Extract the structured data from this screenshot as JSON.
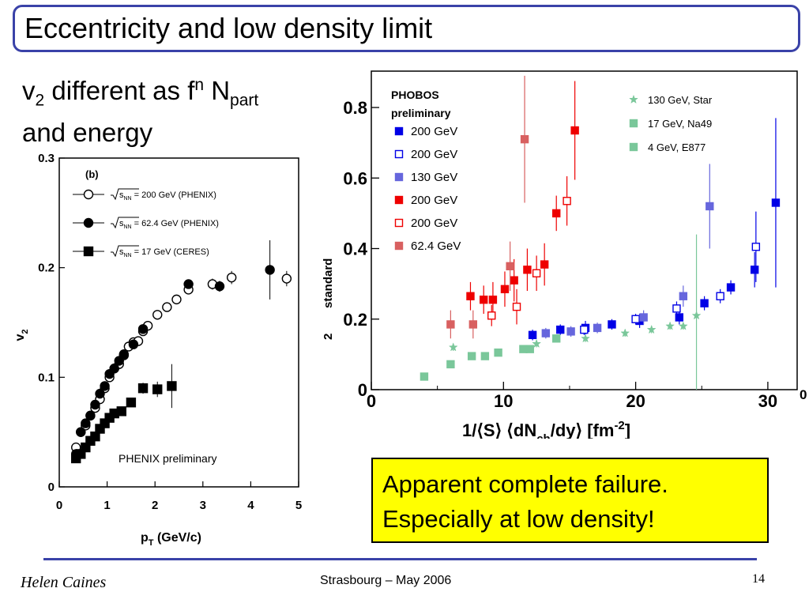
{
  "slide": {
    "title": "Eccentricity and low density limit",
    "subtitle": {
      "v": "v",
      "two": "2",
      "mid": " different as f",
      "n": "n",
      "N": " N",
      "part": "part",
      "line2": "and energy"
    },
    "callout": {
      "line1": "Apparent complete failure.",
      "line2": "Especially at low density!"
    },
    "footer": {
      "author": "Helen Caines",
      "center": "Strasbourg  –  May 2006",
      "page": "14"
    }
  },
  "colors": {
    "accent": "#3a42a8",
    "callout_bg": "#ffff00",
    "blue": "#0000e6",
    "violet": "#6666dd",
    "red": "#ee0000",
    "rose": "#d86060",
    "teal": "#7ac79a"
  },
  "chart_data": [
    {
      "type": "scatter",
      "panel_label": "(b)",
      "xlabel": "p",
      "xlabel_sub": "T",
      "xlabel_unit": " (GeV/c)",
      "ylabel": "v",
      "ylabel_sub": "2",
      "xlim": [
        0,
        5
      ],
      "ylim": [
        0,
        0.3
      ],
      "xticks": [
        "0",
        "1",
        "2",
        "3",
        "4",
        "5"
      ],
      "yticks": [
        "0",
        "0.1",
        "0.2",
        "0.3"
      ],
      "annotation": "PHENIX preliminary",
      "legend": [
        {
          "sqrt": "s",
          "sub": "NN",
          "text": " = 200 GeV (PHENIX)",
          "marker": "open-circle"
        },
        {
          "sqrt": "s",
          "sub": "NN",
          "text": " = 62.4 GeV (PHENIX)",
          "marker": "filled-circle"
        },
        {
          "sqrt": "s",
          "sub": "NN",
          "text": " = 17 GeV (CERES)",
          "marker": "filled-square"
        }
      ],
      "series": [
        {
          "marker": "open-circle",
          "x": [
            0.35,
            0.45,
            0.55,
            0.65,
            0.75,
            0.85,
            0.95,
            1.05,
            1.15,
            1.25,
            1.35,
            1.45,
            1.55,
            1.65,
            1.75,
            1.85,
            2.05,
            2.25,
            2.45,
            2.7,
            3.2,
            3.6,
            4.75
          ],
          "y": [
            0.036,
            0.05,
            0.056,
            0.065,
            0.072,
            0.08,
            0.09,
            0.1,
            0.108,
            0.112,
            0.12,
            0.128,
            0.132,
            0.133,
            0.142,
            0.147,
            0.157,
            0.164,
            0.171,
            0.18,
            0.185,
            0.191,
            0.19
          ],
          "err": [
            0,
            0,
            0,
            0,
            0,
            0,
            0,
            0,
            0,
            0,
            0,
            0,
            0,
            0,
            0,
            0,
            0,
            0,
            0,
            0,
            0.005,
            0.006,
            0.007
          ]
        },
        {
          "marker": "filled-circle",
          "x": [
            0.35,
            0.45,
            0.55,
            0.65,
            0.75,
            0.85,
            0.95,
            1.05,
            1.15,
            1.25,
            1.35,
            1.55,
            1.75,
            2.7,
            3.35,
            4.4
          ],
          "y": [
            0.03,
            0.05,
            0.058,
            0.065,
            0.075,
            0.085,
            0.092,
            0.103,
            0.108,
            0.115,
            0.121,
            0.13,
            0.144,
            0.185,
            0.183,
            0.198
          ],
          "err": [
            0,
            0,
            0,
            0,
            0,
            0,
            0,
            0,
            0,
            0,
            0,
            0,
            0,
            0.004,
            0.005,
            0.027
          ]
        },
        {
          "marker": "filled-square",
          "x": [
            0.35,
            0.45,
            0.55,
            0.65,
            0.75,
            0.85,
            0.95,
            1.05,
            1.15,
            1.3,
            1.5,
            1.75,
            2.05,
            2.35
          ],
          "y": [
            0.026,
            0.03,
            0.036,
            0.042,
            0.046,
            0.053,
            0.058,
            0.063,
            0.067,
            0.069,
            0.077,
            0.09,
            0.089,
            0.092
          ],
          "err": [
            0,
            0,
            0,
            0,
            0,
            0,
            0,
            0,
            0,
            0,
            0,
            0.005,
            0.007,
            0.02
          ]
        }
      ]
    },
    {
      "type": "scatter",
      "xlabel": "1/⟨S⟩ ⟨dN",
      "xlabel_sub": "ch",
      "xlabel_end": "/dy⟩ [fm",
      "xlabel_sup": "-2",
      "xlabel_close": "]",
      "ylabel_fragment": "standard",
      "ylabel_fragment2": "2",
      "edge_fragment": "0",
      "xlim": [
        0,
        32
      ],
      "ylim": [
        0,
        0.9
      ],
      "xticks": [
        "0",
        "10",
        "20",
        "30"
      ],
      "yticks": [
        "0",
        "0.2",
        "0.4",
        "0.6",
        "0.8"
      ],
      "legend_left_title": [
        "PHOBOS",
        "preliminary"
      ],
      "legend_left": [
        {
          "label": "200 GeV",
          "marker": "filled-square",
          "color": "#0000e6"
        },
        {
          "label": "200 GeV",
          "marker": "open-square",
          "color": "#0000e6"
        },
        {
          "label": "130 GeV",
          "marker": "filled-square",
          "color": "#6666dd"
        },
        {
          "label": "200 GeV",
          "marker": "filled-square",
          "color": "#ee0000"
        },
        {
          "label": "200 GeV",
          "marker": "open-square",
          "color": "#ee0000"
        },
        {
          "label": "62.4 GeV",
          "marker": "filled-square",
          "color": "#d86060"
        }
      ],
      "legend_right": [
        {
          "label": "130 GeV, Star",
          "marker": "star",
          "color": "#7ac79a"
        },
        {
          "label": "17 GeV, Na49",
          "marker": "filled-square",
          "color": "#7ac79a"
        },
        {
          "label": "4 GeV, E877",
          "marker": "filled-square",
          "color": "#7ac79a"
        }
      ],
      "series": [
        {
          "marker": "filled-square",
          "color": "#0000e6",
          "x": [
            12.2,
            14.3,
            16.2,
            18.2,
            20.3,
            23.3,
            25.2,
            27.2,
            29.0,
            30.6
          ],
          "y": [
            0.155,
            0.17,
            0.175,
            0.185,
            0.195,
            0.205,
            0.245,
            0.29,
            0.34,
            0.53
          ],
          "err": [
            0.015,
            0.015,
            0.02,
            0.015,
            0.02,
            0.02,
            0.02,
            0.02,
            0.05,
            0.24
          ]
        },
        {
          "marker": "open-square",
          "color": "#0000e6",
          "x": [
            16.1,
            20.0,
            23.1,
            26.4,
            29.1
          ],
          "y": [
            0.17,
            0.2,
            0.23,
            0.265,
            0.405
          ],
          "err": [
            0.015,
            0.015,
            0.02,
            0.02,
            0.1
          ]
        },
        {
          "marker": "filled-square",
          "color": "#6666dd",
          "x": [
            13.2,
            15.1,
            17.1,
            20.6,
            23.6,
            25.6
          ],
          "y": [
            0.16,
            0.165,
            0.175,
            0.205,
            0.265,
            0.52
          ],
          "err": [
            0.015,
            0.015,
            0.015,
            0.02,
            0.03,
            0.12
          ]
        },
        {
          "marker": "filled-square",
          "color": "#ee0000",
          "x": [
            7.5,
            8.5,
            9.2,
            10.1,
            10.8,
            11.8,
            13.1,
            14.0,
            15.4
          ],
          "y": [
            0.265,
            0.255,
            0.255,
            0.285,
            0.31,
            0.34,
            0.355,
            0.5,
            0.735
          ],
          "err": [
            0.04,
            0.04,
            0.05,
            0.05,
            0.06,
            0.06,
            0.06,
            0.05,
            0.14
          ]
        },
        {
          "marker": "open-square",
          "color": "#ee0000",
          "x": [
            9.1,
            11.0,
            12.5,
            14.8
          ],
          "y": [
            0.21,
            0.235,
            0.33,
            0.535
          ],
          "err": [
            0.03,
            0.05,
            0.05,
            0.07
          ]
        },
        {
          "marker": "filled-square",
          "color": "#d86060",
          "x": [
            6.0,
            7.7,
            10.5,
            11.6
          ],
          "y": [
            0.185,
            0.185,
            0.35,
            0.71
          ],
          "err": [
            0.04,
            0.04,
            0.07,
            0.18
          ]
        },
        {
          "marker": "star",
          "color": "#7ac79a",
          "x": [
            6.2,
            12.5,
            16.2,
            19.2,
            21.2,
            22.6,
            23.6,
            24.6
          ],
          "y": [
            0.12,
            0.13,
            0.145,
            0.16,
            0.17,
            0.18,
            0.18,
            0.21
          ],
          "err": [
            0.01,
            0.01,
            0.01,
            0.01,
            0.01,
            0.01,
            0.01,
            0.23
          ]
        },
        {
          "marker": "filled-square",
          "color": "#7ac79a",
          "x": [
            4.0,
            6.0,
            7.6,
            8.6,
            9.6,
            11.5,
            12.0,
            14.0
          ],
          "y": [
            0.037,
            0.072,
            0.095,
            0.095,
            0.105,
            0.115,
            0.115,
            0.145
          ],
          "err": [
            0,
            0,
            0,
            0,
            0,
            0,
            0,
            0
          ]
        }
      ]
    }
  ]
}
